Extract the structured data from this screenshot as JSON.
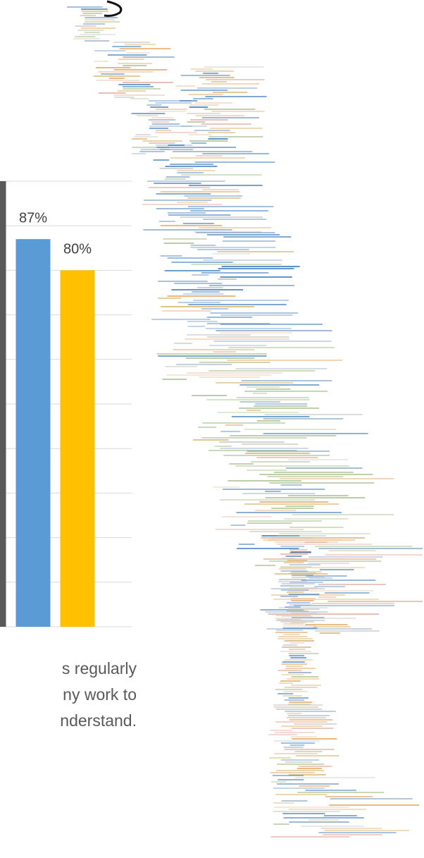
{
  "chart_data": {
    "type": "bar",
    "values": [
      100,
      87,
      80
    ],
    "value_labels": [
      "%",
      "87%",
      "80%"
    ],
    "colors": [
      "#595959",
      "#5b9bd5",
      "#ffc000"
    ],
    "ylim": [
      0,
      100
    ],
    "yticks": [
      0,
      10,
      20,
      30,
      40,
      50,
      60,
      70,
      80,
      90,
      100
    ],
    "grid": true,
    "caption_lines": [
      "s regularly",
      "ny work to",
      "nderstand."
    ]
  }
}
